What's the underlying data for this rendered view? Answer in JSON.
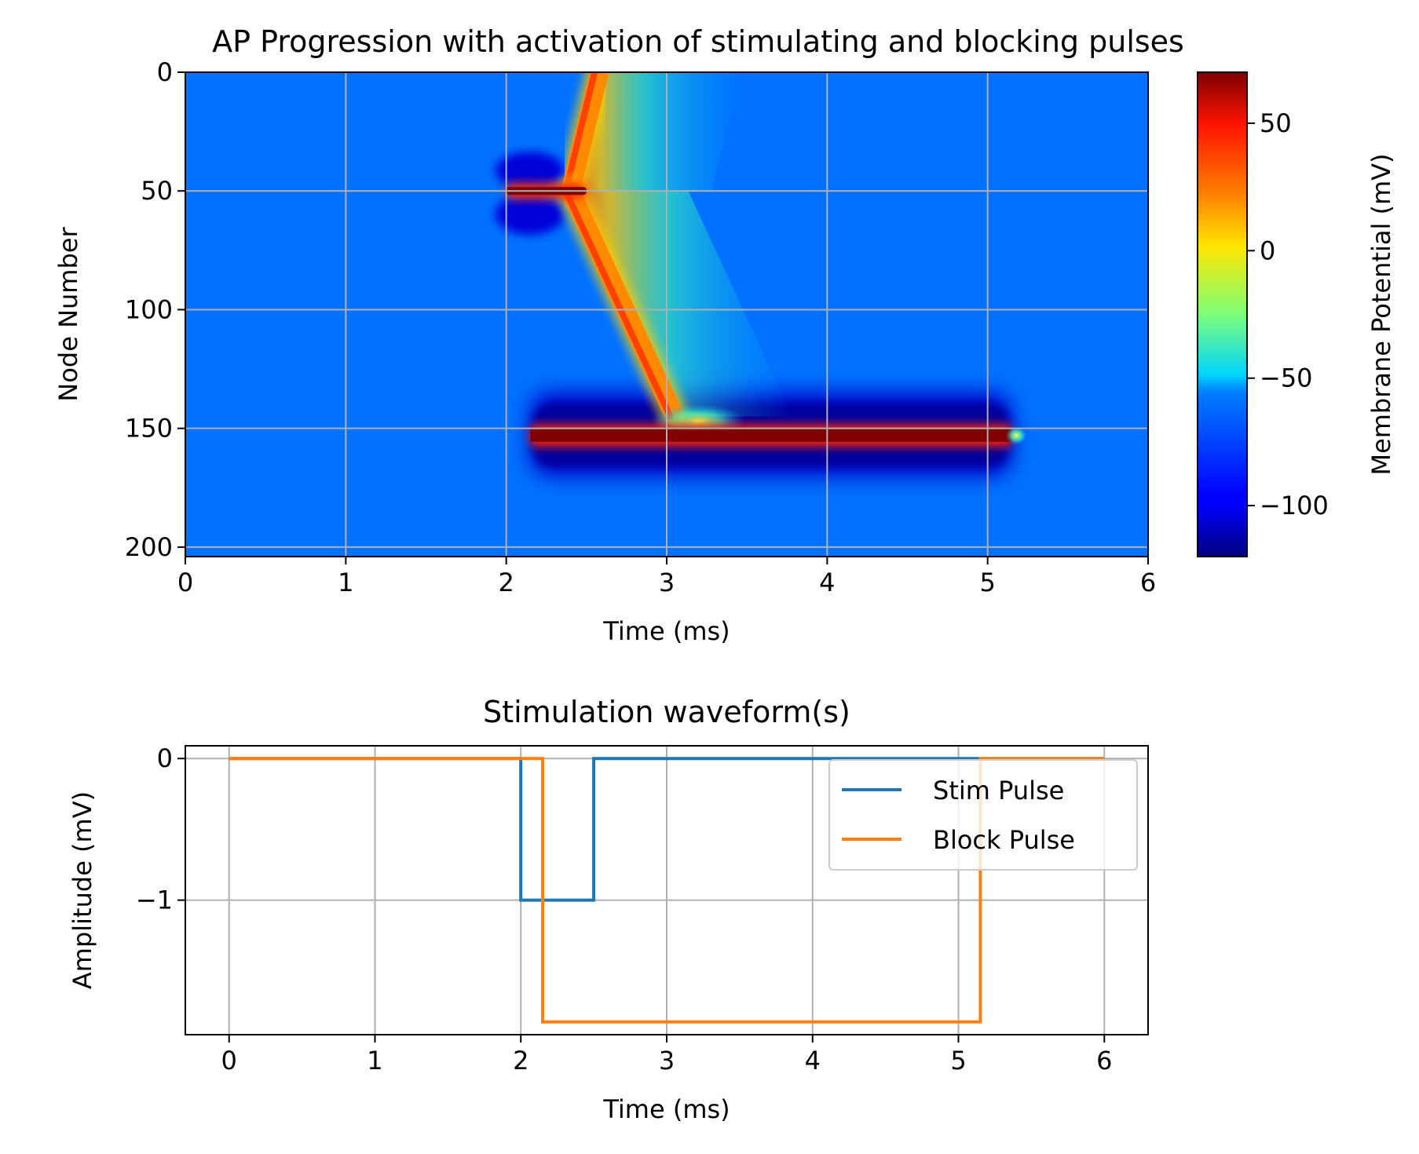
{
  "chart_data": [
    {
      "type": "heatmap",
      "title": "AP Progression with activation of stimulating and blocking pulses",
      "xlabel": "Time (ms)",
      "ylabel": "Node Number",
      "xlim": [
        0,
        6
      ],
      "ylim": [
        204,
        0
      ],
      "y_inverted": true,
      "xticks": [
        0,
        1,
        2,
        3,
        4,
        5,
        6
      ],
      "yticks": [
        0,
        50,
        100,
        150,
        200
      ],
      "grid": true,
      "colormap": "jet",
      "colorbar": {
        "label": "Membrane Potential (mV)",
        "range": [
          -120,
          70
        ],
        "ticks": [
          -100,
          -50,
          0,
          50
        ],
        "tick_labels": [
          "−100",
          "−50",
          "0",
          "50"
        ]
      },
      "background_value_mV": -75,
      "features": [
        {
          "name": "stim_pulse",
          "node": 50,
          "t_start": 2.0,
          "t_end": 2.5,
          "value_mV": 70
        },
        {
          "name": "block_pulse",
          "node": 153,
          "t_start": 2.15,
          "t_end": 5.15,
          "value_mV": 70
        },
        {
          "name": "ap_up_to_node_0",
          "from": [
            2.4,
            50
          ],
          "to": [
            2.58,
            0
          ]
        },
        {
          "name": "ap_down_to_node_150",
          "from": [
            2.4,
            50
          ],
          "to": [
            3.05,
            145
          ]
        },
        {
          "name": "hyperpolarized_region",
          "nodes": [
            135,
            170
          ],
          "t_start": 2.15,
          "t_end": 5.15,
          "value_mV": -115
        }
      ]
    },
    {
      "type": "line",
      "title": "Stimulation waveform(s)",
      "xlabel": "Time (ms)",
      "ylabel": "Amplitude (mV)",
      "xlim": [
        -0.3,
        6.3
      ],
      "ylim": [
        -1.95,
        0.09
      ],
      "xticks": [
        0,
        1,
        2,
        3,
        4,
        5,
        6
      ],
      "yticks": [
        0,
        -1
      ],
      "ytick_labels": [
        "0",
        "−1"
      ],
      "grid": true,
      "legend": "upper right",
      "series": [
        {
          "name": "Stim Pulse",
          "color": "#1f77b4",
          "x": [
            0,
            2.0,
            2.0,
            2.5,
            2.5,
            6.0
          ],
          "y": [
            0,
            0,
            -1,
            -1,
            0,
            0
          ]
        },
        {
          "name": "Block Pulse",
          "color": "#ff7f0e",
          "x": [
            0,
            2.15,
            2.15,
            5.15,
            5.15,
            6.0
          ],
          "y": [
            0,
            0,
            -1.86,
            -1.86,
            0,
            0
          ]
        }
      ]
    }
  ]
}
